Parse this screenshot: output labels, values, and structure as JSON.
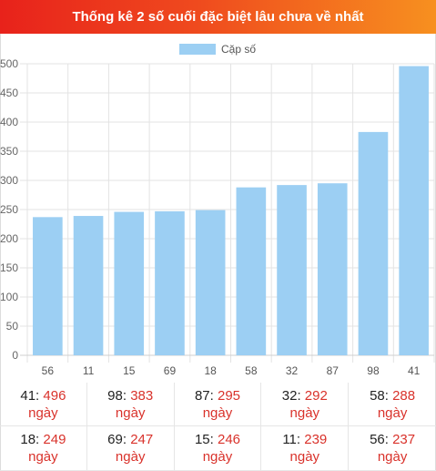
{
  "title": "Thống kê 2 số cuối đặc biệt lâu chưa về nhất",
  "chart_data": {
    "type": "bar",
    "categories": [
      "56",
      "11",
      "15",
      "69",
      "18",
      "58",
      "32",
      "87",
      "98",
      "41"
    ],
    "series": [
      {
        "name": "Cặp số",
        "values": [
          237,
          239,
          246,
          247,
          249,
          288,
          292,
          295,
          383,
          496
        ],
        "color": "#9ccff3"
      }
    ],
    "ylim": [
      0,
      500
    ],
    "yticks": [
      0,
      50,
      100,
      150,
      200,
      250,
      300,
      350,
      400,
      450,
      500
    ],
    "grid": true,
    "legend": "top-center"
  },
  "stats": [
    {
      "num": "41",
      "val": "496",
      "unit": "ngày"
    },
    {
      "num": "98",
      "val": "383",
      "unit": "ngày"
    },
    {
      "num": "87",
      "val": "295",
      "unit": "ngày"
    },
    {
      "num": "32",
      "val": "292",
      "unit": "ngày"
    },
    {
      "num": "58",
      "val": "288",
      "unit": "ngày"
    },
    {
      "num": "18",
      "val": "249",
      "unit": "ngày"
    },
    {
      "num": "69",
      "val": "247",
      "unit": "ngày"
    },
    {
      "num": "15",
      "val": "246",
      "unit": "ngày"
    },
    {
      "num": "11",
      "val": "239",
      "unit": "ngày"
    },
    {
      "num": "56",
      "val": "237",
      "unit": "ngày"
    }
  ]
}
